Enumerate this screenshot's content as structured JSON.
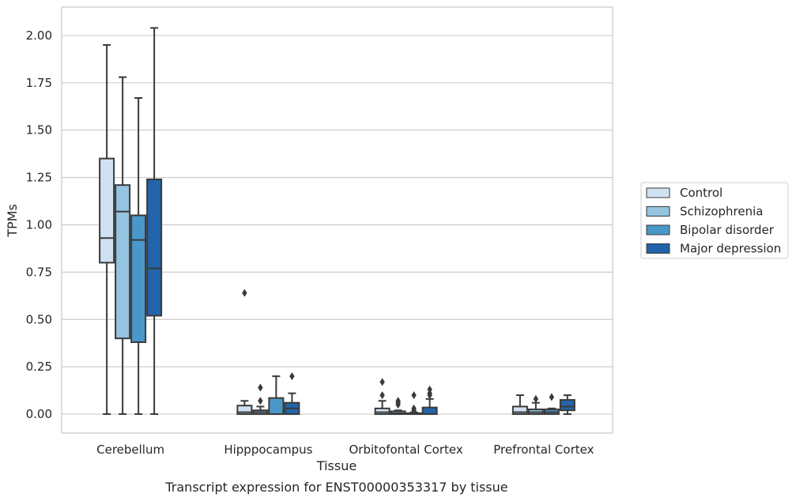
{
  "chart_data": {
    "type": "box",
    "xlabel": "Tissue",
    "ylabel": "TPMs",
    "caption": "Transcript expression for ENST00000353317 by tissue",
    "ylim": [
      -0.1,
      2.15
    ],
    "yticks": [
      "0.00",
      "0.25",
      "0.50",
      "0.75",
      "1.00",
      "1.25",
      "1.50",
      "1.75",
      "2.00"
    ],
    "ytick_values": [
      0,
      0.25,
      0.5,
      0.75,
      1.0,
      1.25,
      1.5,
      1.75,
      2.0
    ],
    "grid": "horizontal",
    "legend_position": "right",
    "categories": [
      "Cerebellum",
      "Hipppocampus",
      "Orbitofontal Cortex",
      "Prefrontal Cortex"
    ],
    "series": [
      {
        "name": "Control",
        "color": "#d0e1f2",
        "boxes": [
          {
            "whisker_low": 0.0,
            "q1": 0.8,
            "median": 0.93,
            "q3": 1.35,
            "whisker_high": 1.95,
            "outliers": []
          },
          {
            "whisker_low": 0.0,
            "q1": 0.0,
            "median": 0.01,
            "q3": 0.045,
            "whisker_high": 0.07,
            "outliers": [
              0.64
            ]
          },
          {
            "whisker_low": 0.0,
            "q1": 0.0,
            "median": 0.01,
            "q3": 0.03,
            "whisker_high": 0.07,
            "outliers": [
              0.1,
              0.17
            ]
          },
          {
            "whisker_low": 0.0,
            "q1": 0.0,
            "median": 0.01,
            "q3": 0.04,
            "whisker_high": 0.1,
            "outliers": []
          }
        ]
      },
      {
        "name": "Schizophrenia",
        "color": "#94c4df",
        "boxes": [
          {
            "whisker_low": 0.0,
            "q1": 0.4,
            "median": 1.07,
            "q3": 1.21,
            "whisker_high": 1.78,
            "outliers": []
          },
          {
            "whisker_low": 0.0,
            "q1": 0.0,
            "median": 0.01,
            "q3": 0.02,
            "whisker_high": 0.04,
            "outliers": [
              0.07,
              0.14
            ]
          },
          {
            "whisker_low": 0.0,
            "q1": 0.0,
            "median": 0.005,
            "q3": 0.015,
            "whisker_high": 0.02,
            "outliers": [
              0.05,
              0.06,
              0.07
            ]
          },
          {
            "whisker_low": 0.0,
            "q1": 0.0,
            "median": 0.01,
            "q3": 0.025,
            "whisker_high": 0.06,
            "outliers": [
              0.08
            ]
          }
        ]
      },
      {
        "name": "Bipolar disorder",
        "color": "#4a98c9",
        "boxes": [
          {
            "whisker_low": 0.0,
            "q1": 0.38,
            "median": 0.92,
            "q3": 1.05,
            "whisker_high": 1.67,
            "outliers": []
          },
          {
            "whisker_low": 0.0,
            "q1": 0.0,
            "median": 0.0,
            "q3": 0.085,
            "whisker_high": 0.2,
            "outliers": []
          },
          {
            "whisker_low": 0.0,
            "q1": 0.0,
            "median": 0.0,
            "q3": 0.005,
            "whisker_high": 0.01,
            "outliers": [
              0.02,
              0.03,
              0.1
            ]
          },
          {
            "whisker_low": 0.0,
            "q1": 0.0,
            "median": 0.01,
            "q3": 0.025,
            "whisker_high": 0.03,
            "outliers": [
              0.09
            ]
          }
        ]
      },
      {
        "name": "Major depression",
        "color": "#2264aa",
        "boxes": [
          {
            "whisker_low": 0.0,
            "q1": 0.52,
            "median": 0.77,
            "q3": 1.24,
            "whisker_high": 2.04,
            "outliers": []
          },
          {
            "whisker_low": 0.0,
            "q1": 0.0,
            "median": 0.03,
            "q3": 0.06,
            "whisker_high": 0.11,
            "outliers": [
              0.2
            ]
          },
          {
            "whisker_low": 0.0,
            "q1": 0.0,
            "median": 0.0,
            "q3": 0.035,
            "whisker_high": 0.08,
            "outliers": [
              0.1,
              0.11,
              0.13
            ]
          },
          {
            "whisker_low": 0.0,
            "q1": 0.02,
            "median": 0.04,
            "q3": 0.075,
            "whisker_high": 0.1,
            "outliers": []
          }
        ]
      }
    ]
  }
}
